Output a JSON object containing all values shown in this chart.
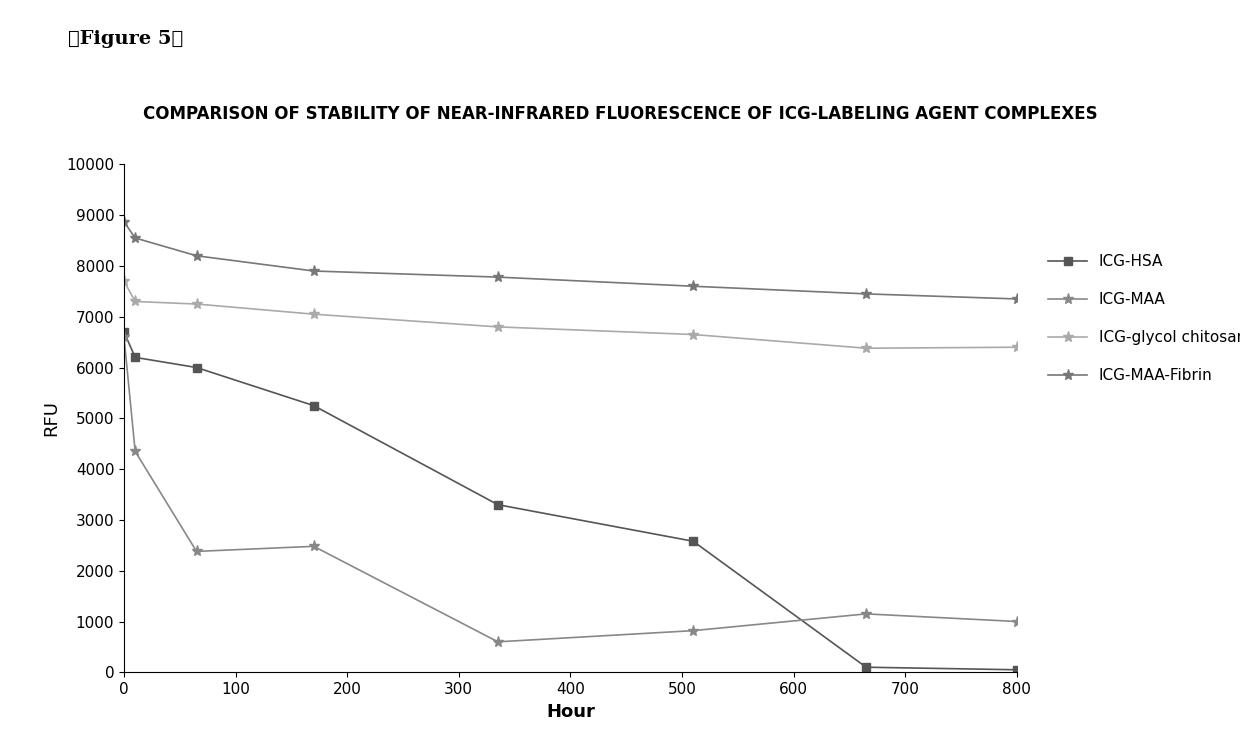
{
  "title": "COMPARISON OF STABILITY OF NEAR-INFRARED FLUORESCENCE OF ICG-LABELING AGENT COMPLEXES",
  "figure_label": "「Figure 5」",
  "xlabel": "Hour",
  "ylabel": "RFU",
  "xlim": [
    0,
    800
  ],
  "ylim": [
    0,
    10000
  ],
  "xticks": [
    0,
    100,
    200,
    300,
    400,
    500,
    600,
    700,
    800
  ],
  "yticks": [
    0,
    1000,
    2000,
    3000,
    4000,
    5000,
    6000,
    7000,
    8000,
    9000,
    10000
  ],
  "series": [
    {
      "label": "ICG-HSA",
      "x": [
        0,
        10,
        65,
        170,
        335,
        510,
        665,
        800
      ],
      "y": [
        6700,
        6200,
        6000,
        5250,
        3300,
        2580,
        100,
        50
      ],
      "color": "#555555",
      "marker": "s",
      "linestyle": "-",
      "linewidth": 1.2,
      "markersize": 6
    },
    {
      "label": "ICG-MAA",
      "x": [
        0,
        10,
        65,
        170,
        335,
        510,
        665,
        800
      ],
      "y": [
        6600,
        4350,
        2380,
        2480,
        600,
        820,
        1150,
        1000
      ],
      "color": "#888888",
      "marker": "*",
      "linestyle": "-",
      "linewidth": 1.2,
      "markersize": 8
    },
    {
      "label": "ICG-glycol chitosan",
      "x": [
        0,
        10,
        65,
        170,
        335,
        510,
        665,
        800
      ],
      "y": [
        7700,
        7300,
        7250,
        7050,
        6800,
        6650,
        6380,
        6400
      ],
      "color": "#aaaaaa",
      "marker": "*",
      "linestyle": "-",
      "linewidth": 1.2,
      "markersize": 8
    },
    {
      "label": "ICG-MAA-Fibrin",
      "x": [
        0,
        10,
        65,
        170,
        335,
        510,
        665,
        800
      ],
      "y": [
        8870,
        8550,
        8200,
        7900,
        7780,
        7600,
        7450,
        7350
      ],
      "color": "#777777",
      "marker": "*",
      "linestyle": "-",
      "linewidth": 1.2,
      "markersize": 8
    }
  ],
  "background_color": "#ffffff",
  "title_fontsize": 12,
  "axis_label_fontsize": 13,
  "tick_fontsize": 11,
  "legend_fontsize": 11,
  "figure_label_fontsize": 14
}
